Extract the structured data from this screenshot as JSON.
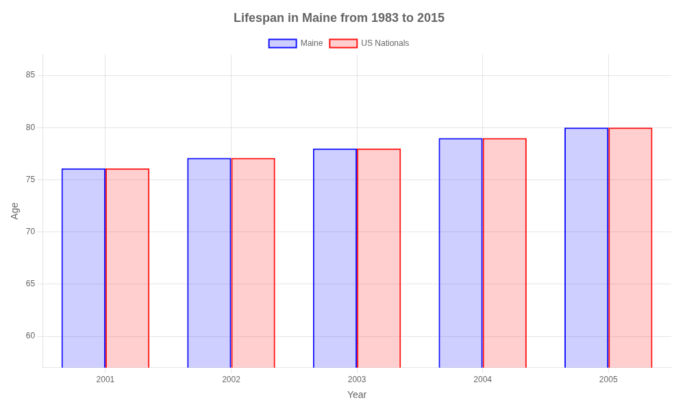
{
  "chart_data": {
    "type": "bar",
    "title": "Lifespan in Maine from 1983 to 2015",
    "categories": [
      "2001",
      "2002",
      "2003",
      "2004",
      "2005"
    ],
    "series": [
      {
        "name": "Maine",
        "color": "#1111ff",
        "values": [
          76.1,
          77.1,
          78.0,
          79.0,
          80.0
        ]
      },
      {
        "name": "US Nationals",
        "color": "#ff1111",
        "values": [
          76.1,
          77.1,
          78.0,
          79.0,
          80.0
        ]
      }
    ],
    "xlabel": "Year",
    "ylabel": "Age",
    "ylim": [
      57,
      87
    ],
    "yticks": [
      60,
      65,
      70,
      75,
      80,
      85
    ],
    "grid": true,
    "legend": "top"
  }
}
